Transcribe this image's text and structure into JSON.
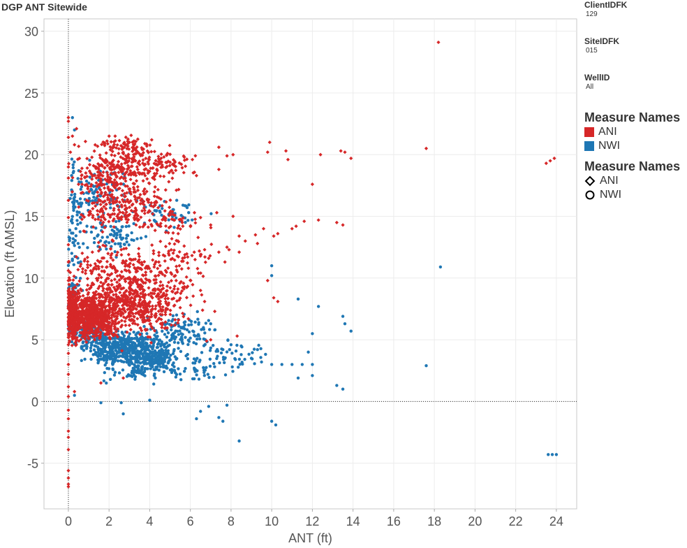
{
  "header": {
    "title": "DGP ANT Sitewide"
  },
  "filters": [
    {
      "label": "ClientIDFK",
      "value": "129"
    },
    {
      "label": "SiteIDFK",
      "value": "015"
    },
    {
      "label": "WellID",
      "value": "All"
    }
  ],
  "legend_color": {
    "title": "Measure Names",
    "items": [
      {
        "label": "ANI",
        "color": "#d62728"
      },
      {
        "label": "NWI",
        "color": "#1f77b4"
      }
    ]
  },
  "legend_shape": {
    "title": "Measure Names",
    "items": [
      {
        "label": "ANI",
        "shape": "diamond-icon"
      },
      {
        "label": "NWI",
        "shape": "circle-icon"
      }
    ]
  },
  "chart_data": {
    "type": "scatter",
    "xlabel": "ANT (ft)",
    "ylabel": "Elevation (ft AMSL)",
    "xlim": [
      -1.2,
      25
    ],
    "ylim": [
      -8.7,
      31
    ],
    "xticks": [
      "0",
      "2",
      "4",
      "6",
      "8",
      "10",
      "12",
      "14",
      "16",
      "18",
      "20",
      "22",
      "24"
    ],
    "yticks": [
      "-5",
      "0",
      "5",
      "10",
      "15",
      "20",
      "25",
      "30"
    ],
    "grid": true,
    "legend": "right",
    "series": [
      {
        "name": "ANI",
        "marker": "diamond",
        "color": "#d62728",
        "points": [
          [
            18.2,
            29.1
          ],
          [
            23.5,
            19.3
          ],
          [
            23.7,
            19.5
          ],
          [
            23.9,
            19.7
          ],
          [
            17.6,
            20.5
          ],
          [
            9.9,
            21.0
          ],
          [
            9.8,
            20.2
          ],
          [
            10.7,
            20.3
          ],
          [
            12.4,
            20.0
          ],
          [
            13.4,
            20.3
          ],
          [
            13.6,
            20.2
          ],
          [
            13.9,
            19.7
          ],
          [
            12.0,
            17.6
          ],
          [
            10.8,
            19.6
          ],
          [
            13.2,
            14.5
          ],
          [
            13.5,
            14.3
          ],
          [
            11.6,
            14.6
          ],
          [
            11.2,
            14.2
          ],
          [
            10.3,
            13.6
          ],
          [
            9.6,
            14.0
          ],
          [
            9.2,
            13.5
          ],
          [
            8.7,
            13.0
          ],
          [
            8.4,
            13.4
          ],
          [
            7.9,
            12.3
          ],
          [
            7.4,
            12.1
          ],
          [
            7.3,
            15.3
          ],
          [
            7.0,
            14.3
          ],
          [
            8.1,
            15.0
          ],
          [
            9.3,
            12.8
          ],
          [
            10.1,
            8.4
          ],
          [
            10.3,
            8.1
          ],
          [
            9.8,
            9.8
          ],
          [
            10.1,
            13.4
          ],
          [
            11.0,
            14.0
          ],
          [
            12.3,
            14.7
          ],
          [
            7.8,
            12.5
          ],
          [
            8.4,
            12.1
          ],
          [
            6.9,
            11.6
          ],
          [
            6.5,
            11.9
          ],
          [
            6.7,
            12.3
          ],
          [
            7.7,
            11.3
          ],
          [
            6.4,
            10.4
          ],
          [
            6.5,
            9.0
          ],
          [
            6.7,
            8.1
          ],
          [
            7.2,
            7.3
          ],
          [
            6.6,
            7.4
          ],
          [
            8.3,
            5.3
          ],
          [
            7.0,
            5.0
          ],
          [
            6.8,
            4.9
          ],
          [
            5.3,
            9.8
          ],
          [
            4.9,
            10.8
          ],
          [
            5.7,
            19.8
          ],
          [
            7.4,
            18.8
          ],
          [
            7.8,
            19.9
          ],
          [
            7.4,
            20.6
          ],
          [
            8.1,
            20.0
          ],
          [
            6.1,
            19.6
          ],
          [
            6.3,
            18.3
          ],
          [
            6.2,
            15.3
          ],
          [
            6.5,
            14.9
          ],
          [
            5.6,
            14.5
          ],
          [
            5.4,
            13.6
          ],
          [
            2.3,
            21.5
          ],
          [
            3.0,
            21.0
          ],
          [
            3.3,
            20.4
          ],
          [
            4.1,
            21.2
          ],
          [
            1.9,
            21.1
          ],
          [
            0.4,
            22.1
          ],
          [
            0.2,
            21.5
          ],
          [
            0.0,
            23.0
          ],
          [
            0.0,
            22.7
          ],
          [
            0.0,
            21.4
          ],
          [
            0.1,
            20.2
          ],
          [
            0.0,
            19.0
          ],
          [
            0.0,
            18.1
          ],
          [
            0.0,
            16.3
          ],
          [
            0.0,
            14.9
          ],
          [
            0.0,
            12.7
          ],
          [
            0.0,
            11.3
          ],
          [
            0.0,
            10.6
          ],
          [
            0.0,
            9.8
          ],
          [
            0.0,
            9.0
          ],
          [
            0.0,
            8.4
          ],
          [
            0.0,
            7.7
          ],
          [
            0.0,
            7.1
          ],
          [
            0.0,
            6.5
          ],
          [
            0.0,
            5.9
          ],
          [
            0.0,
            5.2
          ],
          [
            0.0,
            4.6
          ],
          [
            0.0,
            3.9
          ],
          [
            0.0,
            3.0
          ],
          [
            0.0,
            2.2
          ],
          [
            0.0,
            1.2
          ],
          [
            0.0,
            0.4
          ],
          [
            0.0,
            -0.7
          ],
          [
            0.0,
            -1.4
          ],
          [
            0.0,
            -2.4
          ],
          [
            0.0,
            -2.9
          ],
          [
            0.0,
            -3.9
          ],
          [
            0.0,
            -5.6
          ],
          [
            0.0,
            -6.2
          ],
          [
            0.0,
            -6.7
          ],
          [
            0.0,
            -6.9
          ],
          [
            0.3,
            0.8
          ],
          [
            1.6,
            1.5
          ],
          [
            2.7,
            1.9
          ],
          [
            0.3,
            20.8
          ],
          [
            0.5,
            17.6
          ],
          [
            0.9,
            16.3
          ],
          [
            1.2,
            14.9
          ],
          [
            1.8,
            14.1
          ],
          [
            2.2,
            13.0
          ],
          [
            2.6,
            12.3
          ],
          [
            3.2,
            11.5
          ],
          [
            3.6,
            10.7
          ],
          [
            4.0,
            9.8
          ],
          [
            4.4,
            9.1
          ],
          [
            4.7,
            8.6
          ],
          [
            5.1,
            8.3
          ],
          [
            5.5,
            7.6
          ],
          [
            5.9,
            6.7
          ]
        ],
        "clusters": [
          {
            "cx": 1.1,
            "cy": 7.0,
            "rx": 1.1,
            "ry": 1.6,
            "n": 700
          },
          {
            "cx": 3.2,
            "cy": 7.9,
            "rx": 1.7,
            "ry": 1.9,
            "n": 500
          },
          {
            "cx": 0.2,
            "cy": 7.2,
            "rx": 0.25,
            "ry": 1.8,
            "n": 220
          },
          {
            "cx": 2.5,
            "cy": 10.8,
            "rx": 2.0,
            "ry": 1.5,
            "n": 180
          },
          {
            "cx": 5.2,
            "cy": 9.6,
            "rx": 1.3,
            "ry": 1.6,
            "n": 60
          },
          {
            "cx": 1.9,
            "cy": 18.2,
            "rx": 1.3,
            "ry": 1.5,
            "n": 170
          },
          {
            "cx": 3.6,
            "cy": 19.2,
            "rx": 1.5,
            "ry": 1.1,
            "n": 140
          },
          {
            "cx": 2.8,
            "cy": 20.7,
            "rx": 1.5,
            "ry": 0.7,
            "n": 70
          },
          {
            "cx": 3.4,
            "cy": 16.5,
            "rx": 1.6,
            "ry": 1.1,
            "n": 110
          },
          {
            "cx": 2.2,
            "cy": 15.1,
            "rx": 1.5,
            "ry": 0.9,
            "n": 100
          },
          {
            "cx": 4.8,
            "cy": 14.4,
            "rx": 1.3,
            "ry": 1.0,
            "n": 50
          },
          {
            "cx": 5.7,
            "cy": 12.2,
            "rx": 1.3,
            "ry": 0.9,
            "n": 40
          },
          {
            "cx": 5.3,
            "cy": 19.0,
            "rx": 0.9,
            "ry": 1.0,
            "n": 30
          }
        ]
      },
      {
        "name": "NWI",
        "marker": "circle",
        "color": "#1f77b4",
        "points": [
          [
            18.3,
            10.9
          ],
          [
            17.6,
            2.9
          ],
          [
            23.6,
            -4.3
          ],
          [
            23.8,
            -4.3
          ],
          [
            24.0,
            -4.3
          ],
          [
            11.3,
            8.3
          ],
          [
            12.3,
            7.7
          ],
          [
            13.5,
            6.9
          ],
          [
            13.6,
            6.3
          ],
          [
            13.9,
            5.7
          ],
          [
            12.0,
            5.5
          ],
          [
            11.8,
            4.0
          ],
          [
            10.0,
            11.0
          ],
          [
            10.0,
            10.2
          ],
          [
            13.2,
            1.3
          ],
          [
            13.5,
            1.0
          ],
          [
            11.3,
            1.9
          ],
          [
            12.0,
            2.1
          ],
          [
            10.0,
            -1.6
          ],
          [
            10.2,
            -1.9
          ],
          [
            8.4,
            -3.2
          ],
          [
            7.4,
            -1.3
          ],
          [
            7.6,
            -1.6
          ],
          [
            7.8,
            -0.3
          ],
          [
            6.3,
            -1.4
          ],
          [
            6.5,
            -0.8
          ],
          [
            6.9,
            -0.4
          ],
          [
            4.0,
            0.1
          ],
          [
            2.7,
            -1.0
          ],
          [
            2.6,
            -0.1
          ],
          [
            1.6,
            -0.1
          ],
          [
            0.3,
            0.5
          ],
          [
            0.3,
            22.0
          ],
          [
            0.2,
            23.0
          ],
          [
            10.0,
            3.0
          ],
          [
            10.5,
            3.0
          ],
          [
            11.0,
            3.0
          ],
          [
            11.5,
            3.0
          ],
          [
            12.0,
            3.0
          ],
          [
            9.5,
            3.2
          ],
          [
            9.0,
            3.5
          ],
          [
            8.5,
            3.8
          ],
          [
            8.0,
            4.6
          ],
          [
            7.6,
            4.2
          ],
          [
            7.2,
            5.8
          ],
          [
            7.0,
            6.3
          ],
          [
            8.5,
            4.5
          ],
          [
            9.3,
            4.2
          ]
        ],
        "clusters": [
          {
            "cx": 1.0,
            "cy": 5.4,
            "rx": 1.0,
            "ry": 0.9,
            "n": 120
          },
          {
            "cx": 2.9,
            "cy": 4.2,
            "rx": 1.5,
            "ry": 1.1,
            "n": 500
          },
          {
            "cx": 4.4,
            "cy": 3.4,
            "rx": 1.2,
            "ry": 0.9,
            "n": 140
          },
          {
            "cx": 3.6,
            "cy": 2.4,
            "rx": 1.4,
            "ry": 0.8,
            "n": 60
          },
          {
            "cx": 5.6,
            "cy": 5.8,
            "rx": 1.3,
            "ry": 1.0,
            "n": 110
          },
          {
            "cx": 7.6,
            "cy": 3.8,
            "rx": 1.6,
            "ry": 1.0,
            "n": 50
          },
          {
            "cx": 6.4,
            "cy": 2.6,
            "rx": 1.0,
            "ry": 0.8,
            "n": 30
          },
          {
            "cx": 1.6,
            "cy": 17.0,
            "rx": 1.3,
            "ry": 1.5,
            "n": 90
          },
          {
            "cx": 2.1,
            "cy": 13.5,
            "rx": 1.3,
            "ry": 1.2,
            "n": 80
          },
          {
            "cx": 4.9,
            "cy": 15.2,
            "rx": 1.3,
            "ry": 1.1,
            "n": 50
          },
          {
            "cx": 0.3,
            "cy": 15.5,
            "rx": 0.3,
            "ry": 4.0,
            "n": 60
          },
          {
            "cx": 0.3,
            "cy": 8.0,
            "rx": 0.3,
            "ry": 2.5,
            "n": 60
          }
        ]
      }
    ]
  }
}
